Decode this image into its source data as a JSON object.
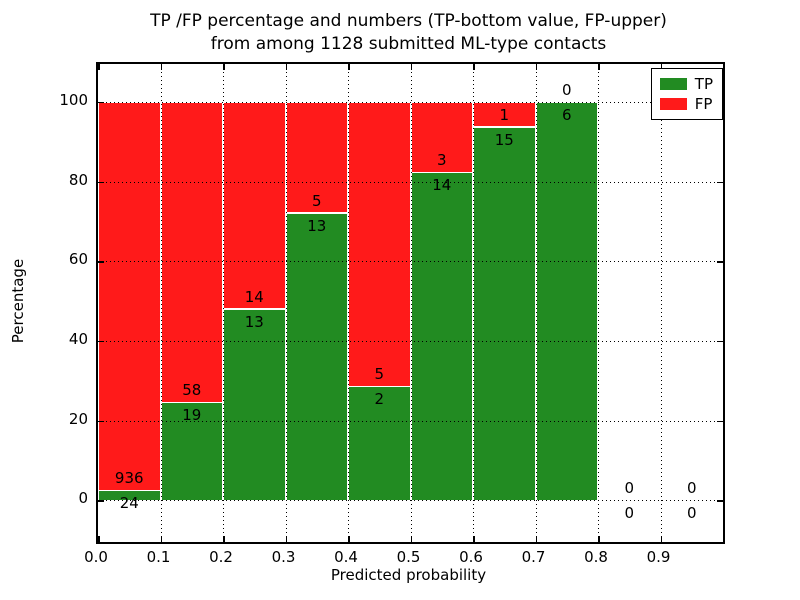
{
  "figure": {
    "title_line1": "TP /FP percentage and numbers (TP-bottom value, FP-upper)",
    "title_line2": "from among 1128 submitted ML-type contacts"
  },
  "chart_data": {
    "type": "bar",
    "stacked": true,
    "title": "TP /FP percentage and numbers (TP-bottom value, FP-upper) from among 1128 submitted ML-type contacts",
    "total_contacts": 1128,
    "xlabel": "Predicted probability",
    "ylabel": "Percentage",
    "xlim": [
      0.0,
      1.0
    ],
    "ylim": [
      -10.5,
      109.5
    ],
    "x_ticks": [
      0.0,
      0.1,
      0.2,
      0.3,
      0.4,
      0.5,
      0.6,
      0.7,
      0.8,
      0.9
    ],
    "x_tick_labels": [
      "0.0",
      "0.1",
      "0.2",
      "0.3",
      "0.4",
      "0.5",
      "0.6",
      "0.7",
      "0.8",
      "0.9"
    ],
    "y_ticks": [
      0,
      20,
      40,
      60,
      80,
      100
    ],
    "y_tick_labels": [
      "0",
      "20",
      "40",
      "60",
      "80",
      "100"
    ],
    "grid": "dotted, both axes, drawn above bars",
    "bin_width": 0.1,
    "bins": [
      {
        "x_start": 0.0,
        "x_end": 0.1,
        "tp": 24,
        "fp": 936,
        "tp_pct": 2.5,
        "fp_pct": 97.5
      },
      {
        "x_start": 0.1,
        "x_end": 0.2,
        "tp": 19,
        "fp": 58,
        "tp_pct": 24.7,
        "fp_pct": 75.3
      },
      {
        "x_start": 0.2,
        "x_end": 0.3,
        "tp": 13,
        "fp": 14,
        "tp_pct": 48.1,
        "fp_pct": 51.9
      },
      {
        "x_start": 0.3,
        "x_end": 0.4,
        "tp": 13,
        "fp": 5,
        "tp_pct": 72.2,
        "fp_pct": 27.8
      },
      {
        "x_start": 0.4,
        "x_end": 0.5,
        "tp": 2,
        "fp": 5,
        "tp_pct": 28.6,
        "fp_pct": 71.4
      },
      {
        "x_start": 0.5,
        "x_end": 0.6,
        "tp": 14,
        "fp": 3,
        "tp_pct": 82.4,
        "fp_pct": 17.6
      },
      {
        "x_start": 0.6,
        "x_end": 0.7,
        "tp": 15,
        "fp": 1,
        "tp_pct": 93.8,
        "fp_pct": 6.2
      },
      {
        "x_start": 0.7,
        "x_end": 0.8,
        "tp": 6,
        "fp": 0,
        "tp_pct": 100,
        "fp_pct": 0
      },
      {
        "x_start": 0.8,
        "x_end": 0.9,
        "tp": 0,
        "fp": 0,
        "tp_pct": 0,
        "fp_pct": 0
      },
      {
        "x_start": 0.9,
        "x_end": 1.0,
        "tp": 0,
        "fp": 0,
        "tp_pct": 0,
        "fp_pct": 0
      }
    ],
    "legend": {
      "position": "upper right",
      "entries": [
        {
          "label": "TP",
          "color": "#228b22"
        },
        {
          "label": "FP",
          "color": "#ff1a1a"
        }
      ]
    },
    "colors": {
      "tp": "#228b22",
      "fp": "#ff1a1a",
      "grid": "#000000",
      "bar_edge": "#ffffff"
    }
  }
}
